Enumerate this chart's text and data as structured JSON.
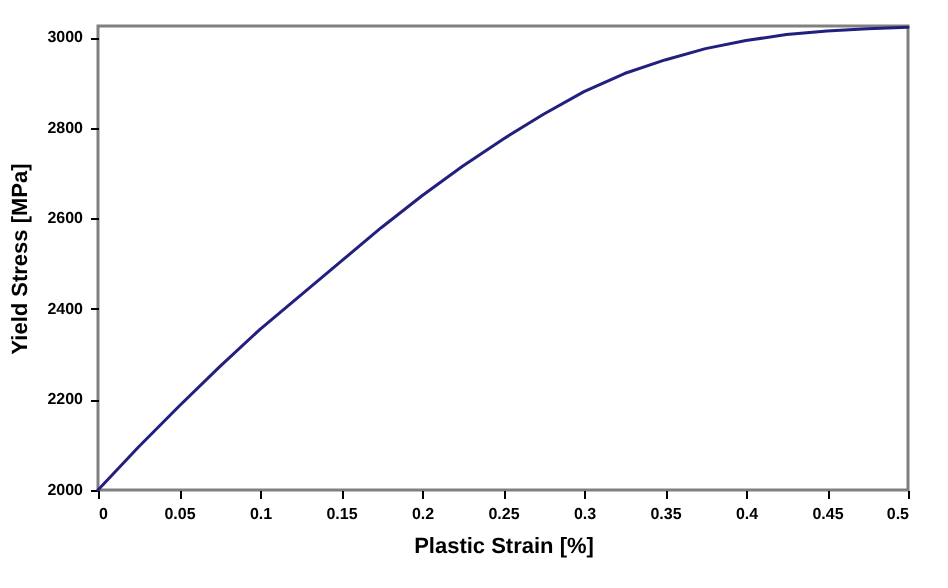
{
  "chart_data": {
    "type": "line",
    "xlabel": "Plastic Strain [%]",
    "ylabel": "Yield Stress [MPa]",
    "x": [
      0,
      0.025,
      0.05,
      0.075,
      0.1,
      0.125,
      0.15,
      0.175,
      0.2,
      0.225,
      0.25,
      0.275,
      0.3,
      0.325,
      0.35,
      0.375,
      0.4,
      0.425,
      0.45,
      0.475,
      0.5
    ],
    "series": [
      {
        "color": "#231f7e",
        "values": [
          2000,
          2095,
          2185,
          2272,
          2355,
          2430,
          2505,
          2580,
          2650,
          2715,
          2775,
          2830,
          2880,
          2920,
          2950,
          2975,
          2993,
          3006,
          3014,
          3019,
          3022
        ]
      }
    ],
    "xlim": [
      0,
      0.5
    ],
    "xticks": [
      0,
      0.05,
      0.1,
      0.15,
      0.2,
      0.25,
      0.3,
      0.35,
      0.4,
      0.45,
      0.5
    ],
    "ylim": [
      2000,
      3025
    ],
    "yticks": [
      2000,
      2200,
      2400,
      2600,
      2800,
      3000
    ],
    "grid": false,
    "legend": false,
    "marker": "none",
    "line_style": "solid"
  }
}
